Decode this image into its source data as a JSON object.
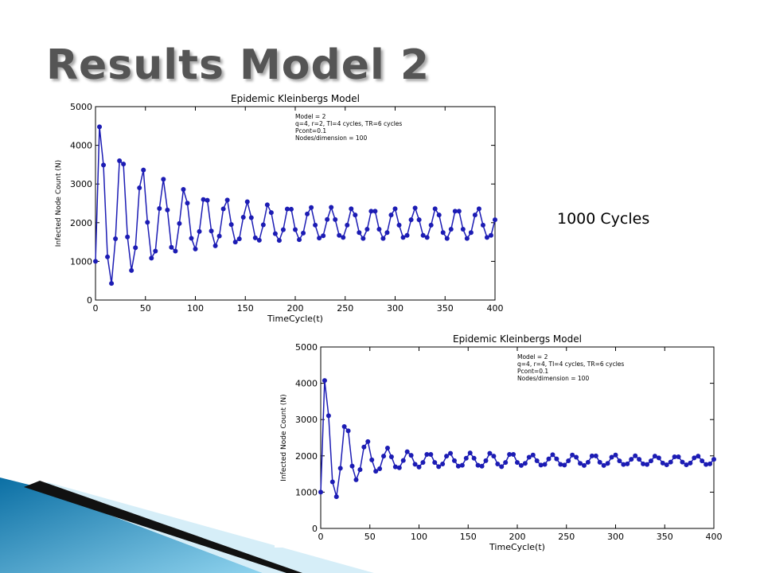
{
  "slide": {
    "title": "Results Model 2",
    "note": "1000 Cycles"
  },
  "chart_data": [
    {
      "type": "line",
      "title": "Epidemic Kleinbergs Model",
      "xlabel": "TimeCycle(t)",
      "ylabel": "Infected Node Count (N)",
      "annotation": [
        "Model = 2",
        "q=4, r=2, TI=4 cycles, TR=6 cycles",
        "Pcont=0.1",
        "Nodes/dimension = 100"
      ],
      "color": "#1c1cb4",
      "xlim": [
        0,
        400
      ],
      "xticks": [
        0,
        50,
        100,
        150,
        200,
        250,
        300,
        350,
        400
      ],
      "ylim": [
        0,
        5000
      ],
      "yticks": [
        0,
        1000,
        2000,
        3000,
        4000,
        5000
      ],
      "x": [
        0,
        4,
        8,
        12,
        16,
        20,
        24,
        28,
        32,
        36,
        40,
        44,
        48,
        52,
        56,
        60,
        64,
        68,
        72,
        76,
        80,
        84,
        88,
        92,
        96,
        100,
        104,
        108,
        112,
        116,
        120,
        124,
        128,
        132,
        136,
        140,
        144,
        148,
        152,
        156,
        160,
        164,
        168,
        172,
        176,
        180,
        184,
        188,
        192,
        196,
        200,
        204,
        208,
        212,
        216,
        220,
        224,
        228,
        232,
        236,
        240,
        244,
        248,
        252,
        256,
        260,
        264,
        268,
        272,
        276,
        280,
        284,
        288,
        292,
        296,
        300,
        304,
        308,
        312,
        316,
        320,
        324,
        328,
        332,
        336,
        340,
        344,
        348,
        352,
        356,
        360,
        364,
        368,
        372,
        376,
        380,
        384,
        388,
        392,
        396,
        400
      ],
      "values": [
        1000,
        4477,
        3491,
        1115,
        429,
        1585,
        3600,
        3515,
        1630,
        763,
        1354,
        2900,
        3361,
        2009,
        1084,
        1265,
        2366,
        3123,
        2328,
        1364,
        1265,
        1978,
        2860,
        2504,
        1596,
        1319,
        1773,
        2599,
        2579,
        1784,
        1402,
        1655,
        2357,
        2584,
        1953,
        1500,
        1582,
        2139,
        2540,
        2129,
        1607,
        1545,
        1945,
        2461,
        2260,
        1715,
        1540,
        1819,
        2353,
        2347,
        1822,
        1560,
        1730,
        2224,
        2392,
        1938,
        1602,
        1661,
        2083,
        2396,
        2080,
        1671,
        1619,
        1936,
        2359,
        2200,
        1744,
        1591,
        1830,
        2296,
        2296,
        1830,
        1591,
        1744,
        2200,
        2359,
        1936,
        1619,
        1671,
        2075,
        2380,
        2075,
        1671,
        1619,
        1936,
        2359,
        2200,
        1744,
        1591,
        1830,
        2296,
        2296,
        1830,
        1591,
        1744,
        2200,
        2359,
        1936,
        1619,
        1671,
        2075
      ]
    },
    {
      "type": "line",
      "title": "Epidemic Kleinbergs Model",
      "xlabel": "TimeCycle(t)",
      "ylabel": "Infected Node Count (N)",
      "annotation": [
        "Model = 2",
        "q=4, r=4, TI=4 cycles, TR=6 cycles",
        "Pcont=0.1",
        "Nodes/dimension = 100"
      ],
      "color": "#1c1cb4",
      "xlim": [
        0,
        400
      ],
      "xticks": [
        0,
        50,
        100,
        150,
        200,
        250,
        300,
        350,
        400
      ],
      "ylim": [
        0,
        5000
      ],
      "yticks": [
        0,
        1000,
        2000,
        3000,
        4000,
        5000
      ],
      "x": [
        0,
        4,
        8,
        12,
        16,
        20,
        24,
        28,
        32,
        36,
        40,
        44,
        48,
        52,
        56,
        60,
        64,
        68,
        72,
        76,
        80,
        84,
        88,
        92,
        96,
        100,
        104,
        108,
        112,
        116,
        120,
        124,
        128,
        132,
        136,
        140,
        144,
        148,
        152,
        156,
        160,
        164,
        168,
        172,
        176,
        180,
        184,
        188,
        192,
        196,
        200,
        204,
        208,
        212,
        216,
        220,
        224,
        228,
        232,
        236,
        240,
        244,
        248,
        252,
        256,
        260,
        264,
        268,
        272,
        276,
        280,
        284,
        288,
        292,
        296,
        300,
        304,
        308,
        312,
        316,
        320,
        324,
        328,
        332,
        336,
        340,
        344,
        348,
        352,
        356,
        360,
        364,
        368,
        372,
        376,
        380,
        384,
        388,
        392,
        396,
        400
      ],
      "values": [
        1000,
        4077,
        3107,
        1282,
        874,
        1658,
        2807,
        2688,
        1720,
        1340,
        1621,
        2243,
        2393,
        1888,
        1576,
        1646,
        1993,
        2215,
        1974,
        1698,
        1672,
        1872,
        2113,
        2014,
        1768,
        1692,
        1817,
        2040,
        2040,
        1817,
        1702,
        1775,
        1994,
        2070,
        1867,
        1715,
        1740,
        1934,
        2080,
        1934,
        1740,
        1715,
        1867,
        2070,
        1994,
        1775,
        1702,
        1817,
        2040,
        2040,
        1817,
        1734,
        1792,
        1962,
        2022,
        1864,
        1745,
        1764,
        1916,
        2030,
        1916,
        1764,
        1745,
        1864,
        2022,
        1962,
        1792,
        1734,
        1824,
        1999,
        1999,
        1824,
        1734,
        1792,
        1962,
        2022,
        1861,
        1762,
        1778,
        1905,
        2000,
        1905,
        1778,
        1762,
        1861,
        1993,
        1944,
        1801,
        1753,
        1828,
        1974,
        1974,
        1828,
        1753,
        1801,
        1944,
        1993,
        1861,
        1762,
        1778,
        1905
      ]
    }
  ]
}
